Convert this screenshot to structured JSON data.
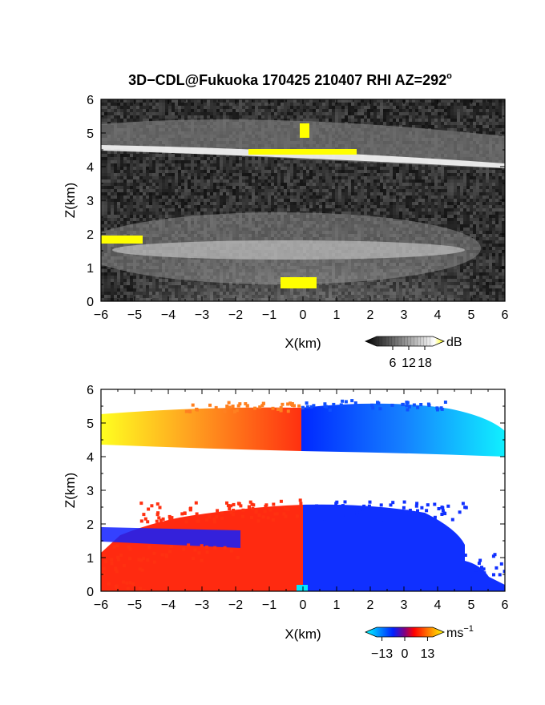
{
  "title": "3D−CDL@Fukuoka 170425 210407 RHI AZ=292",
  "title_sup": "o",
  "chart_data": [
    {
      "type": "heatmap",
      "panel": "reflectivity",
      "xlabel": "X(km)",
      "ylabel": "Z(km)",
      "xlim": [
        -6,
        6
      ],
      "ylim": [
        0,
        6
      ],
      "xticks": [
        -6,
        -5,
        -4,
        -3,
        -2,
        -1,
        0,
        1,
        2,
        3,
        4,
        5,
        6
      ],
      "yticks": [
        0,
        1,
        2,
        3,
        4,
        5,
        6
      ],
      "colorbar": {
        "unit": "dB",
        "ticks": [
          6,
          12,
          18
        ],
        "range": [
          0,
          21
        ],
        "colors": [
          "#000000",
          "#ffffff",
          "#ffff00"
        ]
      },
      "features": [
        {
          "name": "upper cloud layer",
          "x_range": [
            -6,
            6
          ],
          "z_range": [
            4.2,
            5.5
          ],
          "intensity": "bright band near 4.5 km"
        },
        {
          "name": "lower cloud layer",
          "x_range": [
            -6,
            5
          ],
          "z_range": [
            1.0,
            2.5
          ],
          "intensity": "moderate"
        },
        {
          "name": "saturated returns",
          "x_range": [
            -6,
            -4.8
          ],
          "z_range": [
            1.7,
            2.0
          ],
          "intensity": "above 18 dB"
        },
        {
          "name": "saturated returns",
          "x_range": [
            -1.6,
            1.6
          ],
          "z_range": [
            4.3,
            4.6
          ],
          "intensity": "above 18 dB"
        },
        {
          "name": "saturated returns",
          "x_range": [
            -0.6,
            0.5
          ],
          "z_range": [
            0.3,
            0.8
          ],
          "intensity": "above 18 dB"
        }
      ]
    },
    {
      "type": "heatmap",
      "panel": "doppler velocity",
      "xlabel": "X(km)",
      "ylabel": "Z(km)",
      "xlim": [
        -6,
        6
      ],
      "ylim": [
        0,
        6
      ],
      "xticks": [
        -6,
        -5,
        -4,
        -3,
        -2,
        -1,
        0,
        1,
        2,
        3,
        4,
        5,
        6
      ],
      "yticks": [
        0,
        1,
        2,
        3,
        4,
        5,
        6
      ],
      "colorbar": {
        "unit": "ms",
        "unit_sup": "−1",
        "ticks": [
          -13,
          0,
          13
        ],
        "tick_labels": [
          "−13",
          "0",
          "13"
        ],
        "range": [
          -16,
          16
        ],
        "colors": [
          "#00ffff",
          "#0000ff",
          "#ff0000",
          "#ffff00"
        ]
      },
      "features": [
        {
          "name": "upper layer west (receding)",
          "x_range": [
            -6,
            0
          ],
          "z_range": [
            4.3,
            5.5
          ],
          "velocity_ms": [
            2,
            13
          ]
        },
        {
          "name": "upper layer east (approaching)",
          "x_range": [
            0,
            6
          ],
          "z_range": [
            4.1,
            5.6
          ],
          "velocity_ms": [
            -13,
            -2
          ]
        },
        {
          "name": "lower layer west (receding)",
          "x_range": [
            -6,
            0
          ],
          "z_range": [
            0,
            2.6
          ],
          "velocity_ms": [
            1,
            6
          ]
        },
        {
          "name": "lower layer east (approaching)",
          "x_range": [
            0,
            6
          ],
          "z_range": [
            0,
            2.6
          ],
          "velocity_ms": [
            -8,
            -1
          ]
        }
      ]
    }
  ]
}
